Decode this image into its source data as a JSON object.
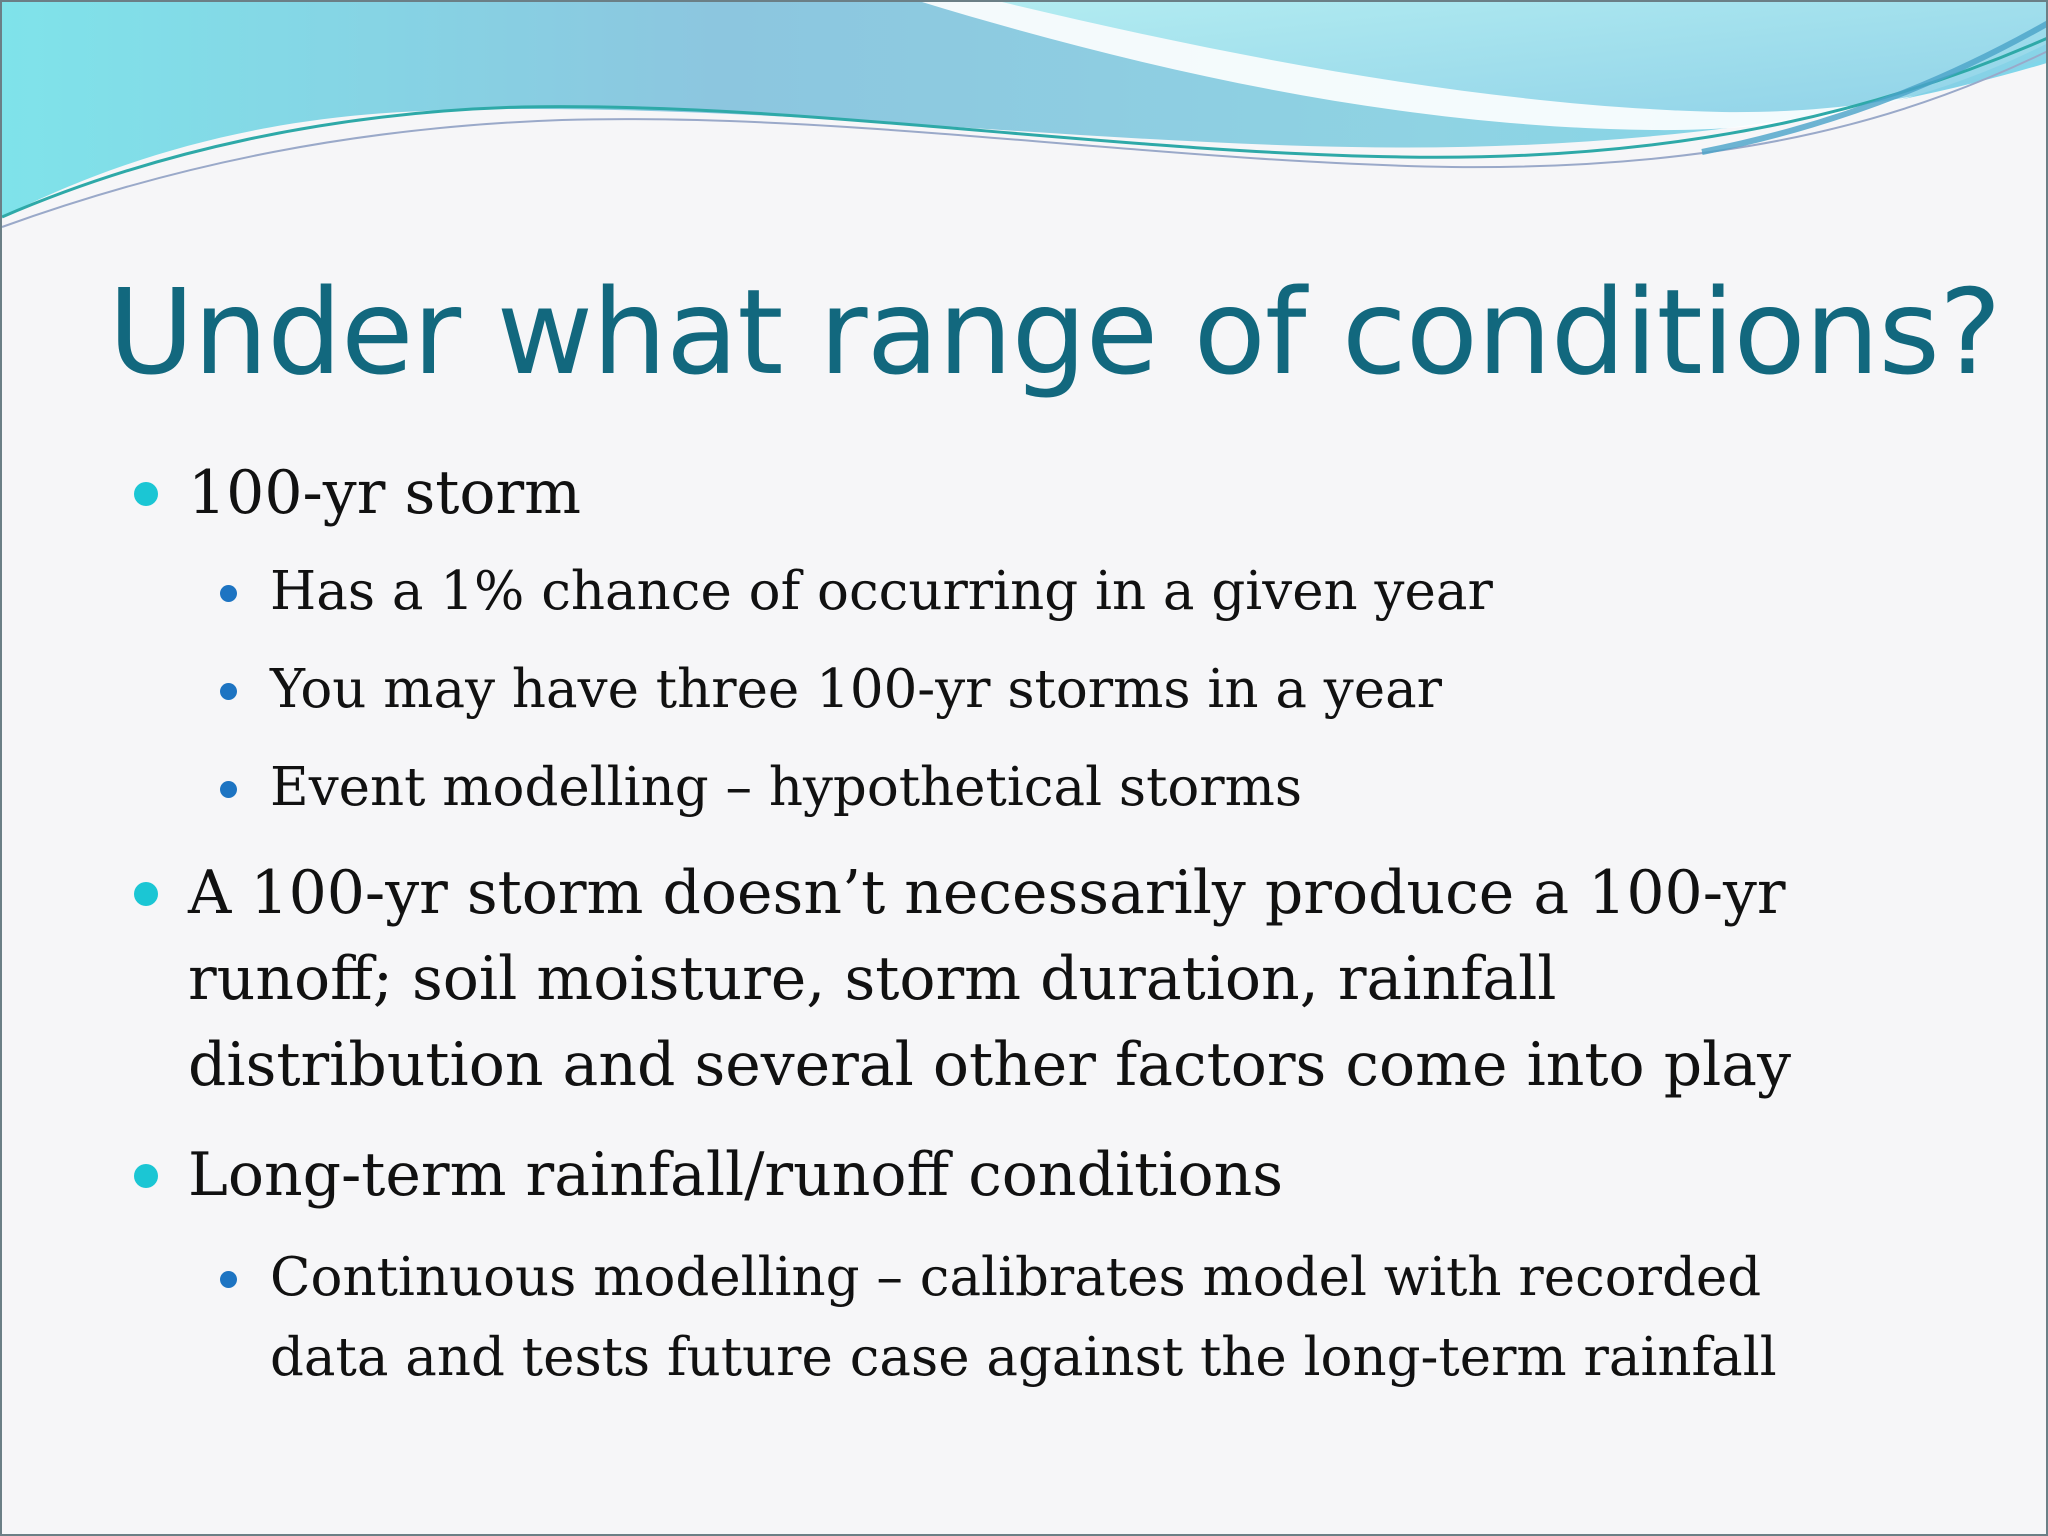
{
  "slide": {
    "title": "Under what range of conditions?",
    "bullets": [
      {
        "level": 1,
        "text": "100-yr storm"
      },
      {
        "level": 2,
        "text": "Has a 1% chance of occurring in a given year"
      },
      {
        "level": 2,
        "text": "You may have three 100-yr storms in a year"
      },
      {
        "level": 2,
        "text": "Event modelling – hypothetical storms"
      },
      {
        "level": 1,
        "lines": [
          "A 100-yr storm doesn’t necessarily produce a 100-yr",
          "runoff; soil moisture, storm duration, rainfall",
          "distribution and several other factors come into play"
        ]
      },
      {
        "level": 1,
        "text": "Long-term rainfall/runoff conditions"
      },
      {
        "level": 2,
        "lines": [
          "Continuous modelling – calibrates model with recorded",
          "data and tests future case against the long-term rainfall"
        ]
      }
    ]
  },
  "colors": {
    "title": "#12687e",
    "bullet_level1": "#1bc6d4",
    "bullet_level2": "#1d74c2"
  }
}
